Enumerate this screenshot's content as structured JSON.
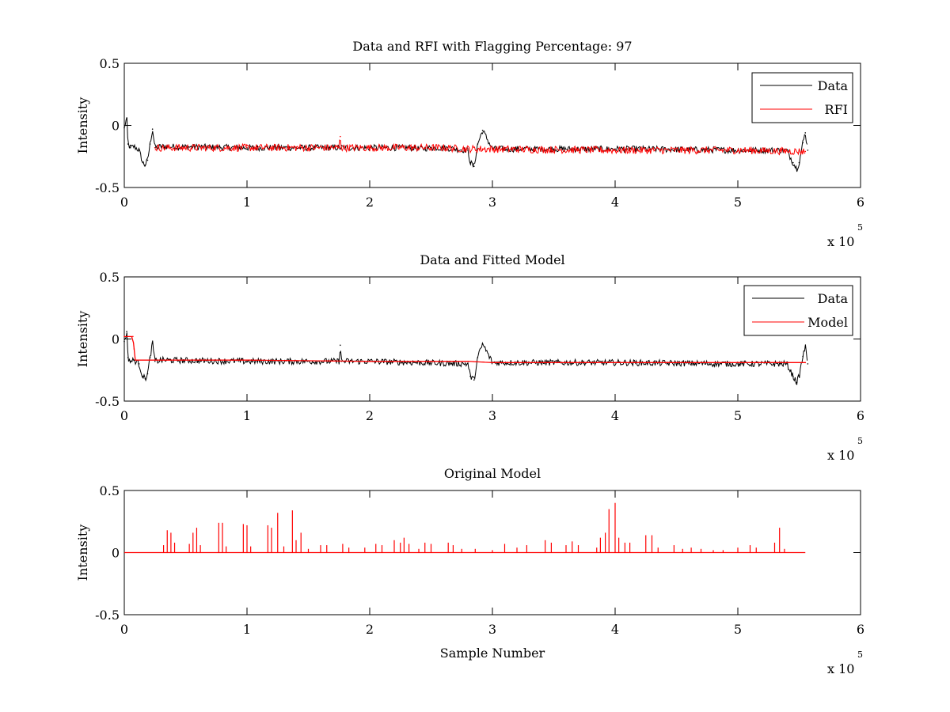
{
  "chart_data": [
    {
      "type": "line",
      "title": "Data and RFI with Flagging Percentage: 97",
      "xlabel": "",
      "ylabel": "Intensity",
      "xlim": [
        0,
        600000
      ],
      "ylim": [
        -0.5,
        0.5
      ],
      "xtick_labels": [
        "0",
        "1",
        "2",
        "3",
        "4",
        "5",
        "6"
      ],
      "ytick_labels": [
        "-0.5",
        "0",
        "0.5"
      ],
      "x_exponent_label": "x 10",
      "x_exponent": "5",
      "legend": {
        "position": "top-right",
        "entries": [
          "Data",
          "RFI"
        ]
      },
      "grid": false,
      "series": [
        {
          "name": "Data",
          "color": "#000000",
          "x": [
            0,
            2000,
            3000,
            5000,
            8000,
            12000,
            15000,
            17000,
            19000,
            21000,
            23000,
            25000,
            30000,
            100000,
            200000,
            237000,
            240000,
            250000,
            260000,
            280000,
            282000,
            285000,
            288000,
            292000,
            300000,
            400000,
            410000,
            420000,
            500000,
            540000,
            545000,
            548000,
            550000,
            553000,
            555000,
            557000
          ],
          "y": [
            -0.02,
            0.06,
            -0.15,
            -0.18,
            -0.17,
            -0.2,
            -0.3,
            -0.32,
            -0.28,
            -0.15,
            -0.03,
            -0.18,
            -0.17,
            -0.18,
            -0.18,
            -0.18,
            -0.19,
            -0.18,
            -0.18,
            -0.2,
            -0.3,
            -0.33,
            -0.15,
            -0.04,
            -0.19,
            -0.19,
            -0.19,
            -0.19,
            -0.2,
            -0.2,
            -0.3,
            -0.35,
            -0.3,
            -0.14,
            -0.06,
            -0.2
          ]
        },
        {
          "name": "RFI",
          "color": "#ff0000",
          "x": [
            25000,
            100000,
            175000,
            176000,
            177000,
            200000,
            237000,
            260000,
            280000,
            292000,
            400000,
            500000,
            555000
          ],
          "y": [
            -0.18,
            -0.18,
            -0.18,
            -0.09,
            -0.18,
            -0.18,
            -0.18,
            -0.18,
            -0.19,
            -0.19,
            -0.2,
            -0.2,
            -0.21
          ]
        }
      ]
    },
    {
      "type": "line",
      "title": "Data and Fitted Model",
      "xlabel": "",
      "ylabel": "Intensity",
      "xlim": [
        0,
        600000
      ],
      "ylim": [
        -0.5,
        0.5
      ],
      "xtick_labels": [
        "0",
        "1",
        "2",
        "3",
        "4",
        "5",
        "6"
      ],
      "ytick_labels": [
        "-0.5",
        "0",
        "0.5"
      ],
      "x_exponent_label": "x 10",
      "x_exponent": "5",
      "legend": {
        "position": "top-right",
        "entries": [
          "Data",
          "Model"
        ]
      },
      "grid": false,
      "series": [
        {
          "name": "Data",
          "color": "#000000",
          "x": [
            0,
            2000,
            3000,
            5000,
            8000,
            12000,
            15000,
            17000,
            19000,
            21000,
            23000,
            25000,
            30000,
            100000,
            175000,
            176000,
            177000,
            200000,
            280000,
            282000,
            285000,
            288000,
            292000,
            300000,
            400000,
            500000,
            540000,
            545000,
            548000,
            550000,
            553000,
            555000,
            557000
          ],
          "y": [
            -0.02,
            0.06,
            -0.15,
            -0.18,
            -0.17,
            -0.2,
            -0.3,
            -0.32,
            -0.28,
            -0.15,
            -0.03,
            -0.18,
            -0.17,
            -0.18,
            -0.18,
            -0.05,
            -0.18,
            -0.18,
            -0.2,
            -0.3,
            -0.33,
            -0.15,
            -0.04,
            -0.19,
            -0.19,
            -0.2,
            -0.2,
            -0.3,
            -0.35,
            -0.3,
            -0.14,
            -0.06,
            -0.2
          ]
        },
        {
          "name": "Model",
          "color": "#ff0000",
          "x": [
            0,
            7000,
            8000,
            9000,
            100000,
            200000,
            280000,
            300000,
            400000,
            500000,
            555000
          ],
          "y": [
            0.02,
            0.02,
            -0.08,
            -0.17,
            -0.17,
            -0.18,
            -0.18,
            -0.19,
            -0.19,
            -0.19,
            -0.19
          ]
        }
      ]
    },
    {
      "type": "line",
      "title": "Original Model",
      "xlabel": "Sample Number",
      "ylabel": "Intensity",
      "xlim": [
        0,
        600000
      ],
      "ylim": [
        -0.5,
        0.5
      ],
      "xtick_labels": [
        "0",
        "1",
        "2",
        "3",
        "4",
        "5",
        "6"
      ],
      "ytick_labels": [
        "-0.5",
        "0",
        "0.5"
      ],
      "x_exponent_label": "x 10",
      "x_exponent": "5",
      "grid": false,
      "series": [
        {
          "color": "#ff0000",
          "x": [
            0,
            555000
          ],
          "y": [
            0,
            0
          ],
          "spikes": [
            [
              32000,
              0.06
            ],
            [
              35000,
              0.18
            ],
            [
              38000,
              0.16
            ],
            [
              41000,
              0.08
            ],
            [
              53000,
              0.07
            ],
            [
              56000,
              0.16
            ],
            [
              59000,
              0.2
            ],
            [
              62000,
              0.06
            ],
            [
              77000,
              0.24
            ],
            [
              80000,
              0.24
            ],
            [
              83000,
              0.05
            ],
            [
              97000,
              0.23
            ],
            [
              100000,
              0.22
            ],
            [
              103000,
              0.05
            ],
            [
              117000,
              0.22
            ],
            [
              120000,
              0.2
            ],
            [
              125000,
              0.32
            ],
            [
              130000,
              0.05
            ],
            [
              137000,
              0.34
            ],
            [
              140000,
              0.1
            ],
            [
              144000,
              0.16
            ],
            [
              150000,
              0.03
            ],
            [
              160000,
              0.06
            ],
            [
              165000,
              0.06
            ],
            [
              178000,
              0.07
            ],
            [
              183000,
              0.04
            ],
            [
              196000,
              0.04
            ],
            [
              205000,
              0.07
            ],
            [
              210000,
              0.06
            ],
            [
              220000,
              0.1
            ],
            [
              225000,
              0.08
            ],
            [
              228000,
              0.12
            ],
            [
              232000,
              0.07
            ],
            [
              240000,
              0.03
            ],
            [
              245000,
              0.08
            ],
            [
              250000,
              0.07
            ],
            [
              264000,
              0.08
            ],
            [
              268000,
              0.06
            ],
            [
              275000,
              0.03
            ],
            [
              286000,
              0.03
            ],
            [
              300000,
              0.02
            ],
            [
              310000,
              0.07
            ],
            [
              320000,
              0.04
            ],
            [
              328000,
              0.06
            ],
            [
              343000,
              0.1
            ],
            [
              348000,
              0.08
            ],
            [
              360000,
              0.06
            ],
            [
              365000,
              0.09
            ],
            [
              370000,
              0.06
            ],
            [
              385000,
              0.04
            ],
            [
              388000,
              0.12
            ],
            [
              392000,
              0.16
            ],
            [
              395000,
              0.35
            ],
            [
              400000,
              0.4
            ],
            [
              403000,
              0.12
            ],
            [
              408000,
              0.08
            ],
            [
              412000,
              0.08
            ],
            [
              425000,
              0.14
            ],
            [
              430000,
              0.14
            ],
            [
              435000,
              0.04
            ],
            [
              448000,
              0.06
            ],
            [
              455000,
              0.03
            ],
            [
              462000,
              0.04
            ],
            [
              470000,
              0.03
            ],
            [
              480000,
              0.02
            ],
            [
              488000,
              0.02
            ],
            [
              500000,
              0.04
            ],
            [
              510000,
              0.06
            ],
            [
              515000,
              0.04
            ],
            [
              530000,
              0.08
            ],
            [
              534000,
              0.2
            ],
            [
              538000,
              0.03
            ]
          ]
        }
      ]
    }
  ]
}
